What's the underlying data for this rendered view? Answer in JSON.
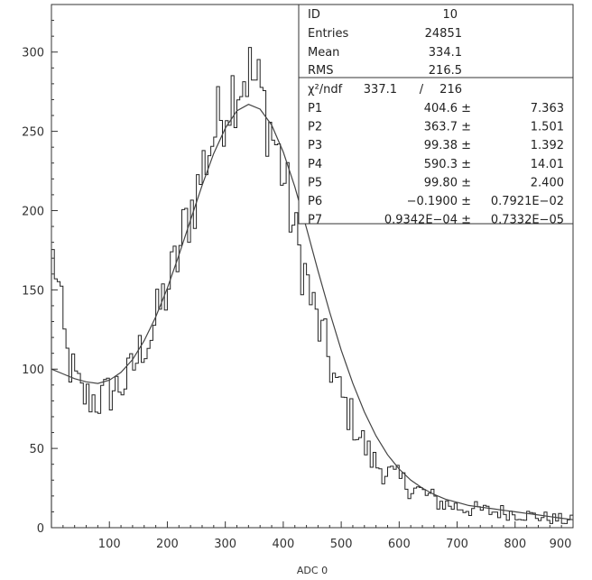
{
  "chart_data": {
    "type": "histogram",
    "title": "",
    "xlabel": "ADC 0",
    "ylabel": "",
    "xlim": [
      0,
      900
    ],
    "ylim": [
      0,
      330
    ],
    "xticks": [
      100,
      200,
      300,
      400,
      500,
      600,
      700,
      800,
      900
    ],
    "yticks": [
      0,
      50,
      100,
      150,
      200,
      250,
      300
    ],
    "grid": false,
    "bin_width": 5,
    "histogram_anchors": [
      [
        0,
        168
      ],
      [
        5,
        170
      ],
      [
        10,
        160
      ],
      [
        15,
        140
      ],
      [
        20,
        128
      ],
      [
        25,
        110
      ],
      [
        30,
        105
      ],
      [
        40,
        95
      ],
      [
        50,
        85
      ],
      [
        60,
        82
      ],
      [
        70,
        82
      ],
      [
        80,
        80
      ],
      [
        90,
        82
      ],
      [
        100,
        85
      ],
      [
        110,
        88
      ],
      [
        120,
        90
      ],
      [
        130,
        92
      ],
      [
        140,
        100
      ],
      [
        150,
        108
      ],
      [
        160,
        118
      ],
      [
        170,
        120
      ],
      [
        180,
        130
      ],
      [
        190,
        142
      ],
      [
        200,
        150
      ],
      [
        210,
        162
      ],
      [
        220,
        172
      ],
      [
        230,
        190
      ],
      [
        240,
        200
      ],
      [
        250,
        210
      ],
      [
        260,
        225
      ],
      [
        270,
        238
      ],
      [
        280,
        248
      ],
      [
        290,
        258
      ],
      [
        300,
        268
      ],
      [
        310,
        275
      ],
      [
        320,
        280
      ],
      [
        330,
        285
      ],
      [
        340,
        288
      ],
      [
        350,
        282
      ],
      [
        360,
        275
      ],
      [
        370,
        262
      ],
      [
        380,
        250
      ],
      [
        390,
        238
      ],
      [
        400,
        222
      ],
      [
        410,
        205
      ],
      [
        420,
        185
      ],
      [
        430,
        170
      ],
      [
        440,
        158
      ],
      [
        450,
        140
      ],
      [
        460,
        128
      ],
      [
        470,
        118
      ],
      [
        480,
        105
      ],
      [
        490,
        92
      ],
      [
        500,
        82
      ],
      [
        510,
        75
      ],
      [
        520,
        68
      ],
      [
        530,
        60
      ],
      [
        540,
        52
      ],
      [
        550,
        45
      ],
      [
        560,
        40
      ],
      [
        570,
        38
      ],
      [
        580,
        35
      ],
      [
        590,
        32
      ],
      [
        600,
        30
      ],
      [
        610,
        28
      ],
      [
        620,
        26
      ],
      [
        630,
        24
      ],
      [
        640,
        22
      ],
      [
        650,
        20
      ],
      [
        660,
        18
      ],
      [
        670,
        16
      ],
      [
        680,
        15
      ],
      [
        690,
        14
      ],
      [
        700,
        13
      ],
      [
        720,
        12
      ],
      [
        740,
        11
      ],
      [
        760,
        10
      ],
      [
        780,
        10
      ],
      [
        800,
        9
      ],
      [
        820,
        8
      ],
      [
        840,
        7
      ],
      [
        860,
        6
      ],
      [
        880,
        5
      ],
      [
        900,
        4
      ]
    ],
    "fit_curve": [
      [
        0,
        100
      ],
      [
        20,
        97
      ],
      [
        40,
        94
      ],
      [
        60,
        92
      ],
      [
        80,
        91
      ],
      [
        100,
        93
      ],
      [
        120,
        98
      ],
      [
        140,
        106
      ],
      [
        160,
        118
      ],
      [
        180,
        133
      ],
      [
        200,
        151
      ],
      [
        220,
        172
      ],
      [
        240,
        194
      ],
      [
        260,
        216
      ],
      [
        280,
        236
      ],
      [
        300,
        252
      ],
      [
        320,
        263
      ],
      [
        340,
        267
      ],
      [
        360,
        264
      ],
      [
        380,
        254
      ],
      [
        400,
        237
      ],
      [
        420,
        215
      ],
      [
        440,
        189
      ],
      [
        460,
        162
      ],
      [
        480,
        136
      ],
      [
        500,
        112
      ],
      [
        520,
        91
      ],
      [
        540,
        73
      ],
      [
        560,
        58
      ],
      [
        580,
        46
      ],
      [
        600,
        37
      ],
      [
        620,
        30
      ],
      [
        640,
        25
      ],
      [
        660,
        21
      ],
      [
        680,
        18
      ],
      [
        700,
        16
      ],
      [
        720,
        14
      ],
      [
        740,
        13
      ],
      [
        760,
        12
      ],
      [
        780,
        11
      ],
      [
        800,
        10
      ],
      [
        820,
        9
      ],
      [
        840,
        8
      ],
      [
        860,
        7
      ],
      [
        880,
        6
      ],
      [
        900,
        5
      ]
    ]
  },
  "stats": {
    "id_label": "ID",
    "id_value": "10",
    "entries_label": "Entries",
    "entries_value": "24851",
    "mean_label": "Mean",
    "mean_value": "334.1",
    "rms_label": "RMS",
    "rms_value": "216.5",
    "chi_label": "χ²/ndf",
    "chi_value": "337.1",
    "chi_sep": "/",
    "ndf_value": "216",
    "params": [
      {
        "name": "P1",
        "value": "404.6 ±",
        "error": "7.363"
      },
      {
        "name": "P2",
        "value": "363.7 ±",
        "error": "1.501"
      },
      {
        "name": "P3",
        "value": "99.38 ±",
        "error": "1.392"
      },
      {
        "name": "P4",
        "value": "590.3 ±",
        "error": "14.01"
      },
      {
        "name": "P5",
        "value": "99.80 ±",
        "error": "2.400"
      },
      {
        "name": "P6",
        "value": "−0.1900 ±",
        "error": "0.7921E−02"
      },
      {
        "name": "P7",
        "value": "0.9342E−04 ±",
        "error": "0.7332E−05"
      }
    ]
  },
  "colors": {
    "frame": "#333333",
    "histogram": "#222222",
    "fit": "#444444"
  }
}
